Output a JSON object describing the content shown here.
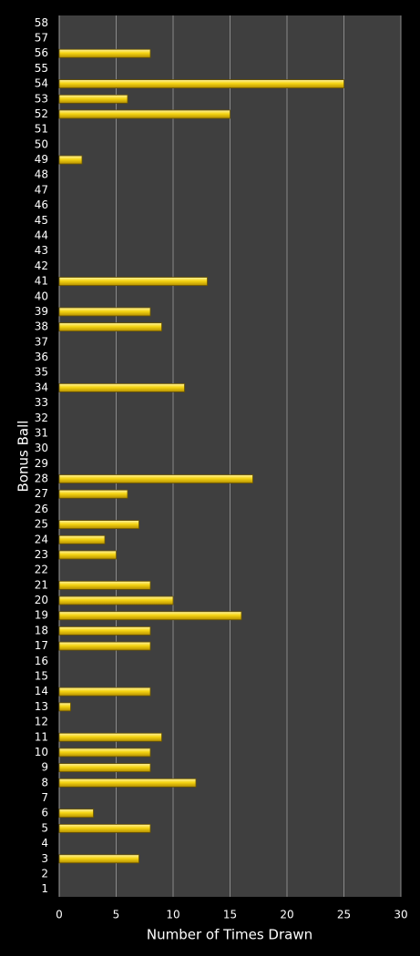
{
  "chart_data": {
    "type": "bar",
    "orientation": "horizontal",
    "x_label": "Number of Times Drawn",
    "y_label": "Bonus Ball",
    "categories": [
      "1",
      "2",
      "3",
      "4",
      "5",
      "6",
      "7",
      "8",
      "9",
      "10",
      "11",
      "12",
      "13",
      "14",
      "15",
      "16",
      "17",
      "18",
      "19",
      "20",
      "21",
      "22",
      "23",
      "24",
      "25",
      "26",
      "27",
      "28",
      "29",
      "30",
      "31",
      "32",
      "33",
      "34",
      "35",
      "36",
      "37",
      "38",
      "39",
      "40",
      "41",
      "42",
      "43",
      "44",
      "45",
      "46",
      "47",
      "48",
      "49",
      "50",
      "51",
      "52",
      "53",
      "54",
      "55",
      "56",
      "57",
      "58"
    ],
    "values": [
      0,
      0,
      7,
      0,
      8,
      3,
      0,
      12,
      8,
      8,
      9,
      0,
      1,
      8,
      0,
      0,
      8,
      8,
      16,
      10,
      8,
      0,
      5,
      4,
      7,
      0,
      6,
      17,
      0,
      0,
      0,
      0,
      0,
      11,
      0,
      0,
      0,
      9,
      8,
      0,
      13,
      0,
      0,
      0,
      0,
      0,
      0,
      0,
      2,
      0,
      0,
      15,
      6,
      25,
      0,
      8,
      0,
      0
    ],
    "color": "#f2cc0c",
    "xlim": [
      0,
      30
    ],
    "xticks": [
      0,
      5,
      10,
      15,
      20,
      25,
      30
    ],
    "grid": true
  }
}
